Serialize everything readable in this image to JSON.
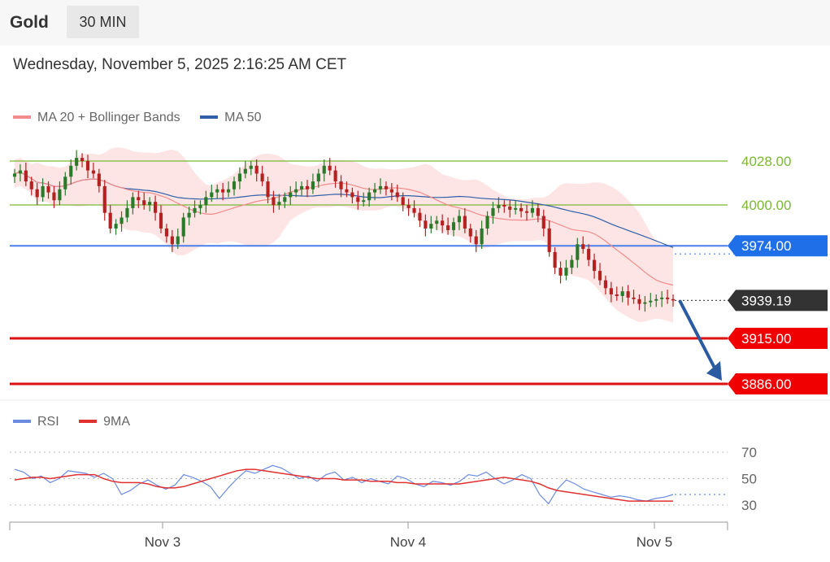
{
  "header": {
    "asset": "Gold",
    "timeframe": "30 MIN"
  },
  "datetime": "Wednesday, November 5, 2025 2:16:25 AM CET",
  "legend_main": [
    {
      "label": "MA 20 + Bollinger Bands",
      "color": "#f28b8b"
    },
    {
      "label": "MA 50",
      "color": "#2f5fa8"
    }
  ],
  "legend_rsi": [
    {
      "label": "RSI",
      "color": "#6b8be0"
    },
    {
      "label": "9MA",
      "color": "#e03030"
    }
  ],
  "colors": {
    "up": "#2a7a2a",
    "down": "#b52020",
    "green_level": "#7ab833",
    "blue_level": "#4a7fe8",
    "red_level": "#e01010",
    "label_dark": "#333333",
    "label_blue": "#1f6fe8",
    "label_red": "#f00000"
  },
  "chart_data": [
    {
      "type": "candlestick",
      "ylim": [
        3860,
        4040
      ],
      "x_ticks": [
        "Nov 3",
        "Nov 4",
        "Nov 5"
      ],
      "levels": [
        {
          "value": 4028.0,
          "label": "4028.00",
          "style": "green"
        },
        {
          "value": 4000.0,
          "label": "4000.00",
          "style": "green"
        },
        {
          "value": 3974.0,
          "label": "3974.00",
          "style": "blue"
        },
        {
          "value": 3939.19,
          "label": "3939.19",
          "style": "current"
        },
        {
          "value": 3915.0,
          "label": "3915.00",
          "style": "red"
        },
        {
          "value": 3886.0,
          "label": "3886.00",
          "style": "red"
        }
      ],
      "close": [
        4020,
        4022,
        4015,
        4010,
        4005,
        4012,
        4008,
        4003,
        4010,
        4018,
        4025,
        4030,
        4028,
        4022,
        4020,
        4012,
        3995,
        3985,
        3988,
        3992,
        3998,
        4005,
        4003,
        4000,
        4002,
        3995,
        3985,
        3980,
        3975,
        3980,
        3992,
        3995,
        3998,
        4000,
        4005,
        4008,
        4010,
        4008,
        4010,
        4015,
        4020,
        4023,
        4025,
        4020,
        4015,
        4005,
        4000,
        4002,
        4005,
        4008,
        4010,
        4012,
        4010,
        4015,
        4020,
        4025,
        4022,
        4015,
        4010,
        4008,
        4005,
        4002,
        4003,
        4008,
        4010,
        4012,
        4010,
        4008,
        4005,
        4000,
        3998,
        3995,
        3990,
        3985,
        3988,
        3990,
        3987,
        3984,
        3989,
        3993,
        3985,
        3980,
        3975,
        3985,
        3993,
        3998,
        4000,
        3999,
        3997,
        3998,
        3996,
        3995,
        3998,
        3993,
        3985,
        3970,
        3960,
        3955,
        3960,
        3965,
        3975,
        3972,
        3965,
        3958,
        3952,
        3947,
        3943,
        3942,
        3945,
        3941,
        3940,
        3937,
        3938,
        3939,
        3940,
        3941,
        3940,
        3939.19
      ]
    },
    {
      "type": "line",
      "title": "RSI",
      "ylim": [
        20,
        80
      ],
      "y_ticks": [
        70,
        50,
        30
      ],
      "series": [
        {
          "name": "RSI",
          "values": [
            57,
            55,
            50,
            52,
            47,
            50,
            56,
            55,
            54,
            51,
            54,
            50,
            38,
            41,
            46,
            49,
            45,
            42,
            45,
            53,
            51,
            48,
            44,
            35,
            43,
            50,
            56,
            54,
            57,
            60,
            58,
            54,
            50,
            52,
            48,
            53,
            55,
            49,
            51,
            47,
            50,
            48,
            46,
            52,
            50,
            46,
            44,
            48,
            47,
            45,
            48,
            53,
            52,
            55,
            50,
            46,
            49,
            53,
            50,
            38,
            31,
            42,
            49,
            46,
            42,
            40,
            38,
            36,
            37,
            36,
            34,
            33,
            35,
            36,
            38
          ]
        },
        {
          "name": "9MA",
          "values": [
            49,
            50,
            51,
            51,
            50,
            51,
            52,
            53,
            53,
            53,
            50,
            48,
            47,
            47,
            47,
            46,
            44,
            43,
            43,
            44,
            46,
            48,
            50,
            52,
            54,
            56,
            57,
            57,
            56,
            55,
            54,
            53,
            52,
            51,
            50,
            50,
            50,
            49,
            49,
            49,
            48,
            48,
            48,
            47,
            47,
            46,
            46,
            46,
            46,
            46,
            46,
            47,
            48,
            49,
            50,
            51,
            50,
            49,
            48,
            46,
            43,
            41,
            40,
            39,
            38,
            37,
            36,
            35,
            34,
            33,
            33,
            33,
            33,
            33,
            33
          ]
        }
      ],
      "last_rsi": 38
    }
  ]
}
